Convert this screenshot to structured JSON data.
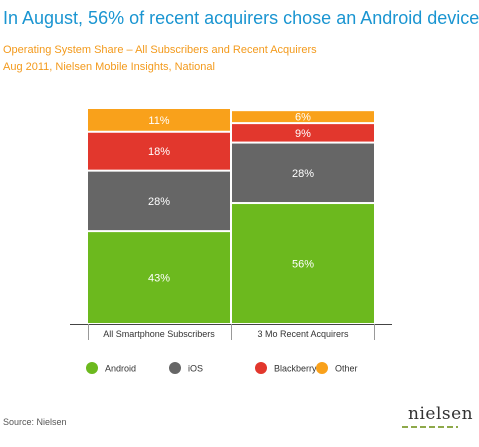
{
  "header": {
    "title": "In August, 56% of recent acquirers chose an Android device",
    "subtitle_line1": "Operating System Share – All Subscribers and Recent Acquirers",
    "subtitle_line2": "Aug 2011, Nielsen Mobile Insights, National"
  },
  "chart_data": {
    "type": "bar",
    "stacked": true,
    "title": "In August, 56% of recent acquirers chose an Android device",
    "subtitle": "Operating System Share – All Subscribers and Recent Acquirers",
    "categories": [
      "All Smartphone Subscribers",
      "3 Mo Recent Acquirers"
    ],
    "series": [
      {
        "name": "Android",
        "color": "#6cb91e",
        "values": [
          43,
          56
        ]
      },
      {
        "name": "iOS",
        "color": "#666666",
        "values": [
          28,
          28
        ]
      },
      {
        "name": "Blackberry",
        "color": "#e2372d",
        "values": [
          18,
          9
        ]
      },
      {
        "name": "Other",
        "color": "#f9a11b",
        "values": [
          11,
          6
        ]
      }
    ],
    "value_suffix": "%",
    "ylim": [
      0,
      100
    ],
    "grid": false,
    "legend_position": "bottom",
    "xlabel": "",
    "ylabel": ""
  },
  "footer": {
    "source": "Source: Nielsen",
    "brand": "nielsen"
  }
}
